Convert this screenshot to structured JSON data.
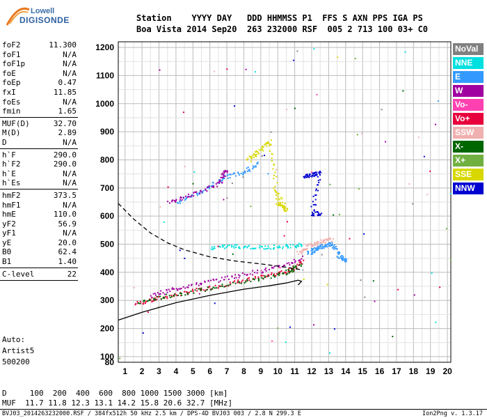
{
  "brand": {
    "line1": "Lowell",
    "line2": "DIGISONDE"
  },
  "header": {
    "labels": "Station    YYYY DAY   DDD HHMMSS P1  FFS S AXN PPS IGA PS",
    "values": "Boa Vista 2014 Sep20  263 232000 RSF  005 2 713 100 03+ C0"
  },
  "params": {
    "group1": [
      {
        "k": "foF2",
        "v": "11.300"
      },
      {
        "k": "foF1",
        "v": "N/A"
      },
      {
        "k": "foF1p",
        "v": "N/A"
      },
      {
        "k": "foE",
        "v": "N/A"
      },
      {
        "k": "foEp",
        "v": "0.47"
      },
      {
        "k": "fxI",
        "v": "11.85"
      },
      {
        "k": "foEs",
        "v": "N/A"
      },
      {
        "k": "fmin",
        "v": "1.65"
      }
    ],
    "group2": [
      {
        "k": "MUF(D)",
        "v": "32.70"
      },
      {
        "k": "M(D)",
        "v": "2.89"
      },
      {
        "k": "D",
        "v": "N/A"
      }
    ],
    "group3": [
      {
        "k": "h`F",
        "v": "290.0"
      },
      {
        "k": "h`F2",
        "v": "290.0"
      },
      {
        "k": "h`E",
        "v": "N/A"
      },
      {
        "k": "h`Es",
        "v": "N/A"
      }
    ],
    "group4": [
      {
        "k": "hmF2",
        "v": "373.5"
      },
      {
        "k": "hmF1",
        "v": "N/A"
      },
      {
        "k": "hmE",
        "v": "110.0"
      },
      {
        "k": "yF2",
        "v": "56.9"
      },
      {
        "k": "yF1",
        "v": "N/A"
      },
      {
        "k": "yE",
        "v": "20.0"
      },
      {
        "k": "B0",
        "v": "62.4"
      },
      {
        "k": "B1",
        "v": "1.40"
      }
    ],
    "group5": [
      {
        "k": "C-level",
        "v": "22"
      }
    ]
  },
  "auto": {
    "line1": "Auto:",
    "line2": "Artist5",
    "line3": "500200"
  },
  "legend": [
    {
      "label": "NoVal",
      "color": "#808080"
    },
    {
      "label": "NNE",
      "color": "#00e0e0"
    },
    {
      "label": "E",
      "color": "#3399ff"
    },
    {
      "label": "W",
      "color": "#a000a0"
    },
    {
      "label": "Vo-",
      "color": "#ff40b0"
    },
    {
      "label": "Vo+",
      "color": "#e8003c"
    },
    {
      "label": "SSW",
      "color": "#f0b0b0"
    },
    {
      "label": "X-",
      "color": "#006600"
    },
    {
      "label": "X+",
      "color": "#70b040"
    },
    {
      "label": "SSE",
      "color": "#d8d800"
    },
    {
      "label": "NNW",
      "color": "#0000d0"
    }
  ],
  "footer": {
    "line1": "D     100  200  400  600  800 1000 1500 3000 [km]",
    "line2": "MUF  11.7 11.8 12.3 13.1 14.2 15.8 20.6 32.7 [MHz]",
    "meta": "BVJ03_2014263232000.RSF / 384fx512h 50 kHz 2.5 km / DPS-4D BVJ03 003 / 2.8 N 299.3 E",
    "version": "Ion2Png v. 1.3.17"
  },
  "chart_data": {
    "type": "scatter",
    "xlim": [
      0.6,
      20.2
    ],
    "ylim": [
      80,
      1220
    ],
    "x_ticks": [
      1,
      2,
      3,
      4,
      5,
      6,
      7,
      8,
      9,
      10,
      11,
      12,
      13,
      14,
      15,
      16,
      17,
      18,
      19,
      20
    ],
    "y_ticks": [
      80,
      100,
      200,
      300,
      400,
      500,
      600,
      700,
      800,
      900,
      1000,
      1100,
      1200
    ],
    "grid": true,
    "traces": [
      {
        "name": "Vo+",
        "color": "#e8003c",
        "points": [
          [
            1.6,
            290
          ],
          [
            3,
            310
          ],
          [
            5,
            335
          ],
          [
            7,
            360
          ],
          [
            9,
            385
          ],
          [
            10.5,
            405
          ],
          [
            11.5,
            440
          ]
        ]
      },
      {
        "name": "X-",
        "color": "#006600",
        "points": [
          [
            1.8,
            295
          ],
          [
            3.5,
            318
          ],
          [
            6,
            345
          ],
          [
            8.5,
            375
          ],
          [
            10.5,
            400
          ],
          [
            11.3,
            430
          ]
        ]
      },
      {
        "name": "W",
        "color": "#a000a0",
        "points": [
          [
            2.5,
            320
          ],
          [
            4,
            345
          ],
          [
            6,
            370
          ],
          [
            8,
            395
          ],
          [
            10,
            420
          ],
          [
            11.5,
            455
          ]
        ]
      },
      {
        "name": "SSW",
        "color": "#f0b0b0",
        "points": [
          [
            11.2,
            470
          ],
          [
            11.8,
            495
          ],
          [
            12.5,
            510
          ],
          [
            13.2,
            520
          ]
        ]
      },
      {
        "name": "E",
        "color": "#3399ff",
        "points": [
          [
            11.8,
            470
          ],
          [
            12.2,
            485
          ],
          [
            12.6,
            495
          ],
          [
            13.2,
            505
          ],
          [
            13.6,
            460
          ],
          [
            14.0,
            440
          ]
        ]
      },
      {
        "name": "NNE",
        "color": "#00e0e0",
        "points": [
          [
            6,
            490
          ],
          [
            7.5,
            495
          ],
          [
            9,
            490
          ],
          [
            10.5,
            495
          ],
          [
            11.5,
            500
          ]
        ]
      },
      {
        "name": "E upper",
        "color": "#3399ff",
        "points": [
          [
            4,
            650
          ],
          [
            5.5,
            690
          ],
          [
            6.8,
            740
          ],
          [
            8,
            760
          ],
          [
            8.8,
            790
          ]
        ]
      },
      {
        "name": "W upper",
        "color": "#a000a0",
        "points": [
          [
            3.5,
            650
          ],
          [
            5,
            680
          ],
          [
            6.5,
            720
          ],
          [
            7,
            770
          ]
        ]
      },
      {
        "name": "SSE",
        "color": "#d8d800",
        "points": [
          [
            8.2,
            800
          ],
          [
            8.8,
            830
          ],
          [
            9.5,
            870
          ],
          [
            10,
            650
          ],
          [
            10.5,
            620
          ],
          [
            9.8,
            700
          ]
        ]
      },
      {
        "name": "NNW",
        "color": "#0000d0",
        "points": [
          [
            11.5,
            745
          ],
          [
            12,
            750
          ],
          [
            12.4,
            755
          ],
          [
            12,
            610
          ],
          [
            12.5,
            612
          ]
        ]
      }
    ],
    "profile_solid": [
      [
        0.6,
        230
      ],
      [
        2,
        258
      ],
      [
        4,
        292
      ],
      [
        6,
        318
      ],
      [
        8,
        340
      ],
      [
        9.5,
        352
      ],
      [
        10.5,
        362
      ],
      [
        11.2,
        372
      ],
      [
        11.4,
        368
      ],
      [
        11.2,
        355
      ]
    ],
    "profile_dashed": [
      [
        0.6,
        645
      ],
      [
        1.5,
        590
      ],
      [
        2.5,
        540
      ],
      [
        3.5,
        505
      ],
      [
        4.5,
        480
      ],
      [
        6,
        455
      ],
      [
        7.5,
        440
      ],
      [
        9,
        430
      ],
      [
        10.5,
        418
      ],
      [
        11.5,
        408
      ]
    ]
  }
}
